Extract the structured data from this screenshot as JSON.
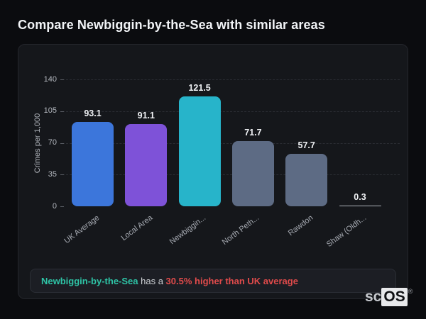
{
  "page": {
    "title": "Compare Newbiggin-by-the-Sea with similar areas"
  },
  "chart_data": {
    "type": "bar",
    "title": "Compare Newbiggin-by-the-Sea with similar areas",
    "xlabel": "",
    "ylabel": "Crimes per 1,000",
    "ylim": [
      0,
      140
    ],
    "yticks": [
      0,
      35,
      70,
      105,
      140
    ],
    "grid": "horizontal-dashed",
    "legend": "none",
    "categories": [
      "UK Average",
      "Local Area",
      "Newbiggin...",
      "North Peth...",
      "Rawdon",
      "Shaw (Oldh..."
    ],
    "values": [
      93.1,
      91.1,
      121.5,
      71.7,
      57.7,
      0.3
    ],
    "bar_colors": [
      "#3c76db",
      "#7e52d8",
      "#27b4ca",
      "#5d6b84",
      "#5d6b84",
      "#aeb3ba"
    ],
    "value_label_color": "#f0f2f5"
  },
  "note": {
    "area_label": "Newbiggin-by-the-Sea",
    "connector_text": " has a ",
    "stat_text": "30.5% higher than UK average",
    "area_color": "#2ec4a6",
    "stat_color": "#e14b4b"
  },
  "logo": {
    "prefix": "sc",
    "suffix": "OS",
    "registered_mark": "®"
  }
}
